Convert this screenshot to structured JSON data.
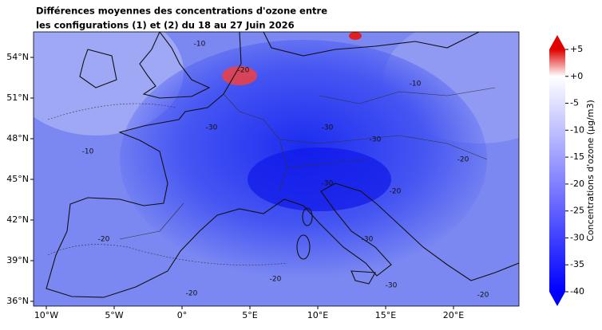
{
  "title": [
    "Différences moyennes des concentrations d'ozone entre",
    "les configurations (1) et (2) du 18 au 27 Juin 2026"
  ],
  "map": {
    "xticks": [
      {
        "value": -10,
        "label": "10°W"
      },
      {
        "value": -5,
        "label": "5°W"
      },
      {
        "value": 0,
        "label": "0°"
      },
      {
        "value": 5,
        "label": "5°E"
      },
      {
        "value": 10,
        "label": "10°E"
      },
      {
        "value": 15,
        "label": "15°E"
      },
      {
        "value": 20,
        "label": "20°E"
      }
    ],
    "yticks": [
      {
        "value": 54,
        "label": "54°N"
      },
      {
        "value": 51,
        "label": "51°N"
      },
      {
        "value": 48,
        "label": "48°N"
      },
      {
        "value": 45,
        "label": "45°N"
      },
      {
        "value": 42,
        "label": "42°N"
      },
      {
        "value": 39,
        "label": "39°N"
      },
      {
        "value": 36,
        "label": "36°N"
      }
    ],
    "contour_labels": [
      -10,
      -10,
      -10,
      -20,
      -30,
      -30,
      -30,
      -20,
      -20,
      -30,
      -20,
      -20,
      -30,
      -20,
      -20,
      -30
    ]
  },
  "colorbar": {
    "label": "Concentrations d'ozone (µg/m3)",
    "lim": [
      -40,
      5
    ],
    "ticks": [
      {
        "value": 5,
        "label": "+5"
      },
      {
        "value": 0,
        "label": "+0"
      },
      -5,
      -10,
      -15,
      -20,
      -25,
      -30,
      -35,
      -40
    ]
  }
}
